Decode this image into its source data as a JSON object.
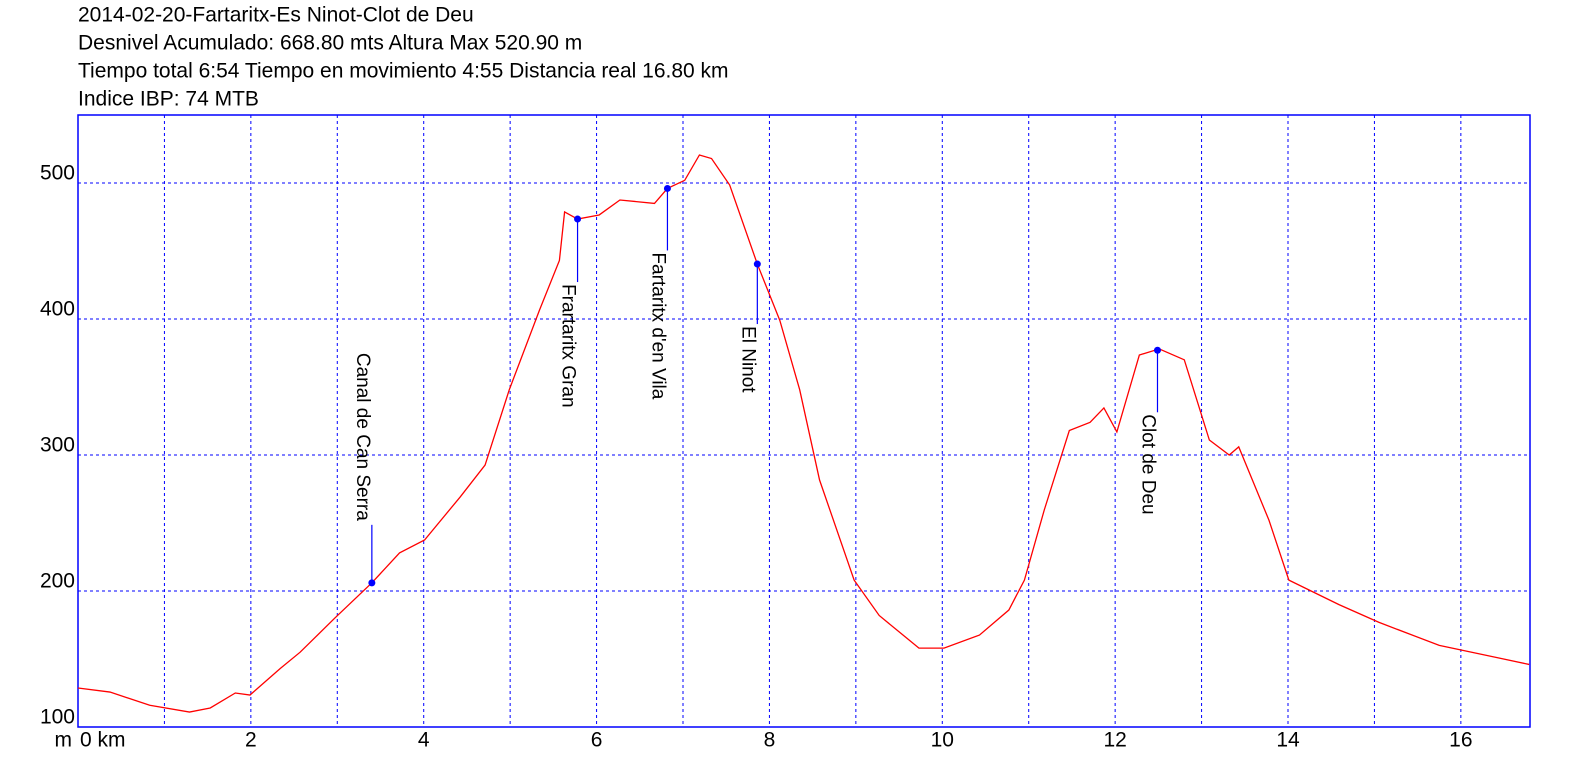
{
  "chart_data": {
    "type": "line",
    "title_lines": [
      "2014-02-20-Fartaritx-Es Ninot-Clot de Deu",
      "Desnivel Acumulado: 668.80 mts  Altura Max 520.90 m",
      "Tiempo total 6:54 Tiempo en movimiento 4:55 Distancia real 16.80 km",
      "Indice IBP: 74 MTB"
    ],
    "y_label": "m",
    "x": [
      0,
      0.37,
      0.83,
      1.29,
      1.53,
      1.82,
      1.99,
      2.34,
      2.57,
      2.97,
      3.4,
      3.72,
      4.01,
      4.42,
      4.71,
      4.99,
      5.34,
      5.57,
      5.63,
      5.78,
      6.03,
      6.27,
      6.67,
      6.82,
      7.02,
      7.19,
      7.33,
      7.54,
      7.86,
      8.12,
      8.35,
      8.58,
      8.98,
      9.27,
      9.73,
      10.02,
      10.43,
      10.77,
      10.95,
      11.18,
      11.47,
      11.71,
      11.87,
      12.02,
      12.28,
      12.51,
      12.8,
      13.09,
      13.32,
      13.43,
      13.78,
      14.01,
      14.59,
      15.05,
      15.75,
      16.44,
      16.79
    ],
    "series": [
      {
        "color": "#ff0000",
        "values": [
          128.7,
          125.7,
          116,
          111,
          114,
          125,
          123.5,
          143,
          155,
          180,
          206,
          228,
          237.5,
          269,
          292.6,
          348,
          406.6,
          443,
          478.7,
          473.5,
          476.5,
          487.5,
          485,
          496,
          502,
          520.6,
          518,
          498.5,
          440.4,
          399,
          348,
          281.6,
          208,
          182,
          158,
          158,
          167.6,
          186,
          208,
          259.6,
          318,
          324,
          334.6,
          317,
          373.5,
          378,
          370,
          311,
          300,
          306,
          252,
          208,
          190,
          177,
          160,
          150.7,
          146
        ]
      }
    ],
    "waypoints": [
      {
        "label": "Canal de Can Serra",
        "x": 3.4,
        "y": 206
      },
      {
        "label": "Frartaritx Gran",
        "x": 5.78,
        "y": 473.5
      },
      {
        "label": "Fartaritx d'en Vila",
        "x": 6.82,
        "y": 496
      },
      {
        "label": "El Ninot",
        "x": 7.86,
        "y": 440.4
      },
      {
        "label": "Clot de Deu",
        "x": 12.49,
        "y": 377
      }
    ],
    "waypoint_color": "#0000ff",
    "xlim": [
      0,
      16.8
    ],
    "ylim": [
      100,
      550
    ],
    "xticks": [
      {
        "value": 0,
        "label": "0 km"
      },
      2,
      4,
      6,
      8,
      10,
      12,
      14,
      16
    ],
    "xminor": [
      1,
      3,
      5,
      7,
      9,
      11,
      13,
      15
    ],
    "yticks": [
      100,
      200,
      300,
      400,
      500
    ],
    "grid": true,
    "axis_color": "#0000ff"
  }
}
